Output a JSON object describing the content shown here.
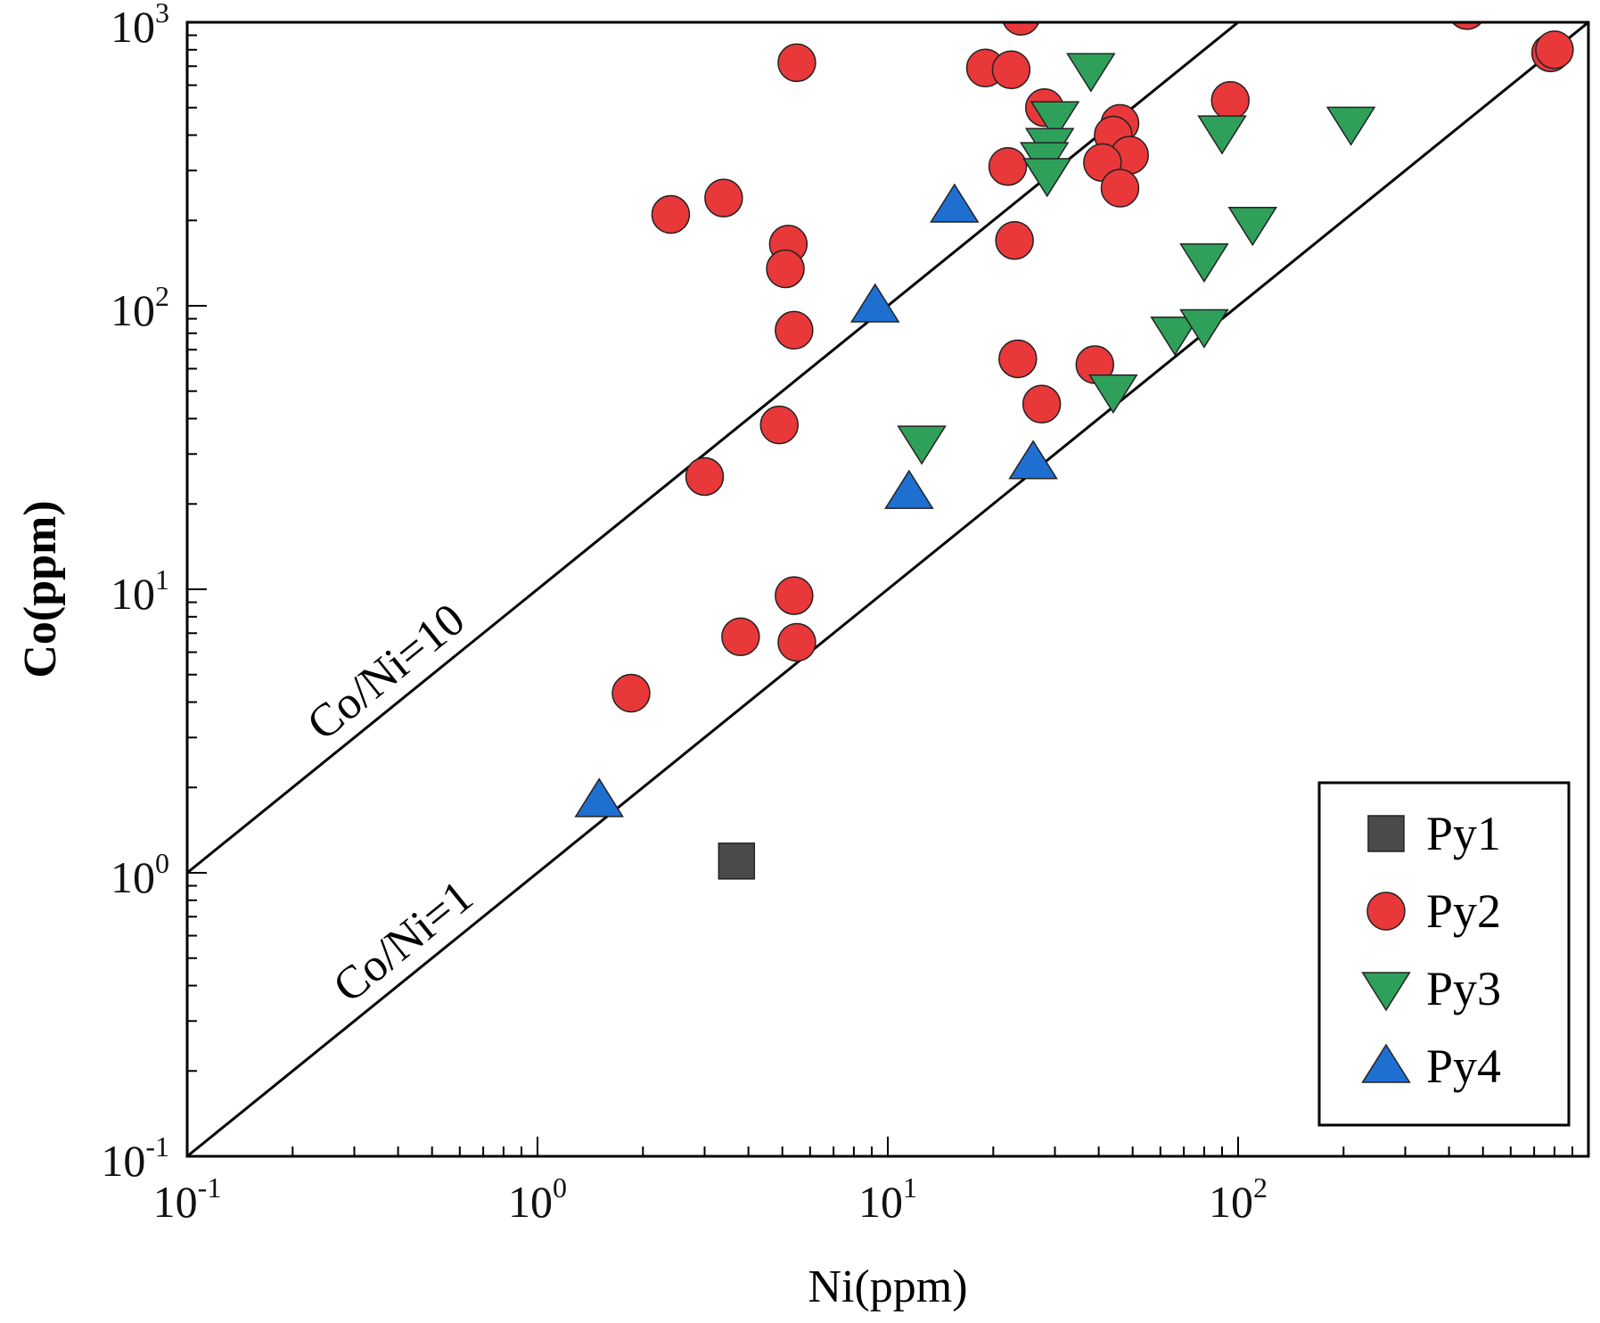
{
  "chart_data": {
    "type": "scatter",
    "xscale": "log",
    "yscale": "log",
    "xlim": [
      0.1,
      1000
    ],
    "ylim": [
      0.1,
      1000
    ],
    "xlabel": "Ni(ppm)",
    "ylabel": "Co(ppm)",
    "x_ticks": [
      {
        "value": 0.1,
        "base": "10",
        "exp": "-1"
      },
      {
        "value": 1,
        "base": "10",
        "exp": "0"
      },
      {
        "value": 10,
        "base": "10",
        "exp": "1"
      },
      {
        "value": 100,
        "base": "10",
        "exp": "2"
      }
    ],
    "y_ticks": [
      {
        "value": 0.1,
        "base": "10",
        "exp": "-1"
      },
      {
        "value": 1,
        "base": "10",
        "exp": "0"
      },
      {
        "value": 10,
        "base": "10",
        "exp": "1"
      },
      {
        "value": 100,
        "base": "10",
        "exp": "2"
      },
      {
        "value": 1000,
        "base": "10",
        "exp": "3"
      }
    ],
    "reference_lines": [
      {
        "label": "Co/Ni=10",
        "ratio": 10
      },
      {
        "label": "Co/Ni=1",
        "ratio": 1
      }
    ],
    "legend_position": "bottom-right",
    "series": [
      {
        "name": "Py1",
        "marker": "square",
        "color": "#4a4a4a",
        "points": [
          [
            3.7,
            1.1
          ]
        ]
      },
      {
        "name": "Py2",
        "marker": "circle",
        "color": "#e8383a",
        "points": [
          [
            5.5,
            720
          ],
          [
            24,
            1050
          ],
          [
            19,
            690
          ],
          [
            22.5,
            680
          ],
          [
            28,
            500
          ],
          [
            46,
            440
          ],
          [
            44,
            400
          ],
          [
            49,
            340
          ],
          [
            41,
            320
          ],
          [
            22,
            310
          ],
          [
            46,
            260
          ],
          [
            2.4,
            210
          ],
          [
            3.4,
            240
          ],
          [
            5.2,
            165
          ],
          [
            5.1,
            135
          ],
          [
            23,
            170
          ],
          [
            5.4,
            82
          ],
          [
            23.5,
            65
          ],
          [
            39,
            62
          ],
          [
            27.5,
            45
          ],
          [
            4.9,
            38
          ],
          [
            3.0,
            25
          ],
          [
            5.4,
            9.5
          ],
          [
            3.8,
            6.8
          ],
          [
            5.5,
            6.5
          ],
          [
            1.85,
            4.3
          ],
          [
            95,
            530
          ],
          [
            450,
            1100
          ],
          [
            780,
            780
          ],
          [
            800,
            800
          ]
        ]
      },
      {
        "name": "Py3",
        "marker": "triangle-down",
        "color": "#2fa05a",
        "points": [
          [
            38,
            680
          ],
          [
            30,
            460
          ],
          [
            29,
            370
          ],
          [
            28,
            330
          ],
          [
            28.5,
            290
          ],
          [
            90,
            410
          ],
          [
            210,
            440
          ],
          [
            110,
            195
          ],
          [
            80,
            145
          ],
          [
            66,
            80
          ],
          [
            80,
            85
          ],
          [
            44,
            50
          ],
          [
            12.5,
            33
          ]
        ]
      },
      {
        "name": "Py4",
        "marker": "triangle-up",
        "color": "#1f6fd1",
        "points": [
          [
            15.5,
            225
          ],
          [
            9.2,
            100
          ],
          [
            11.5,
            22
          ],
          [
            26,
            28
          ],
          [
            1.5,
            1.8
          ]
        ]
      }
    ]
  }
}
